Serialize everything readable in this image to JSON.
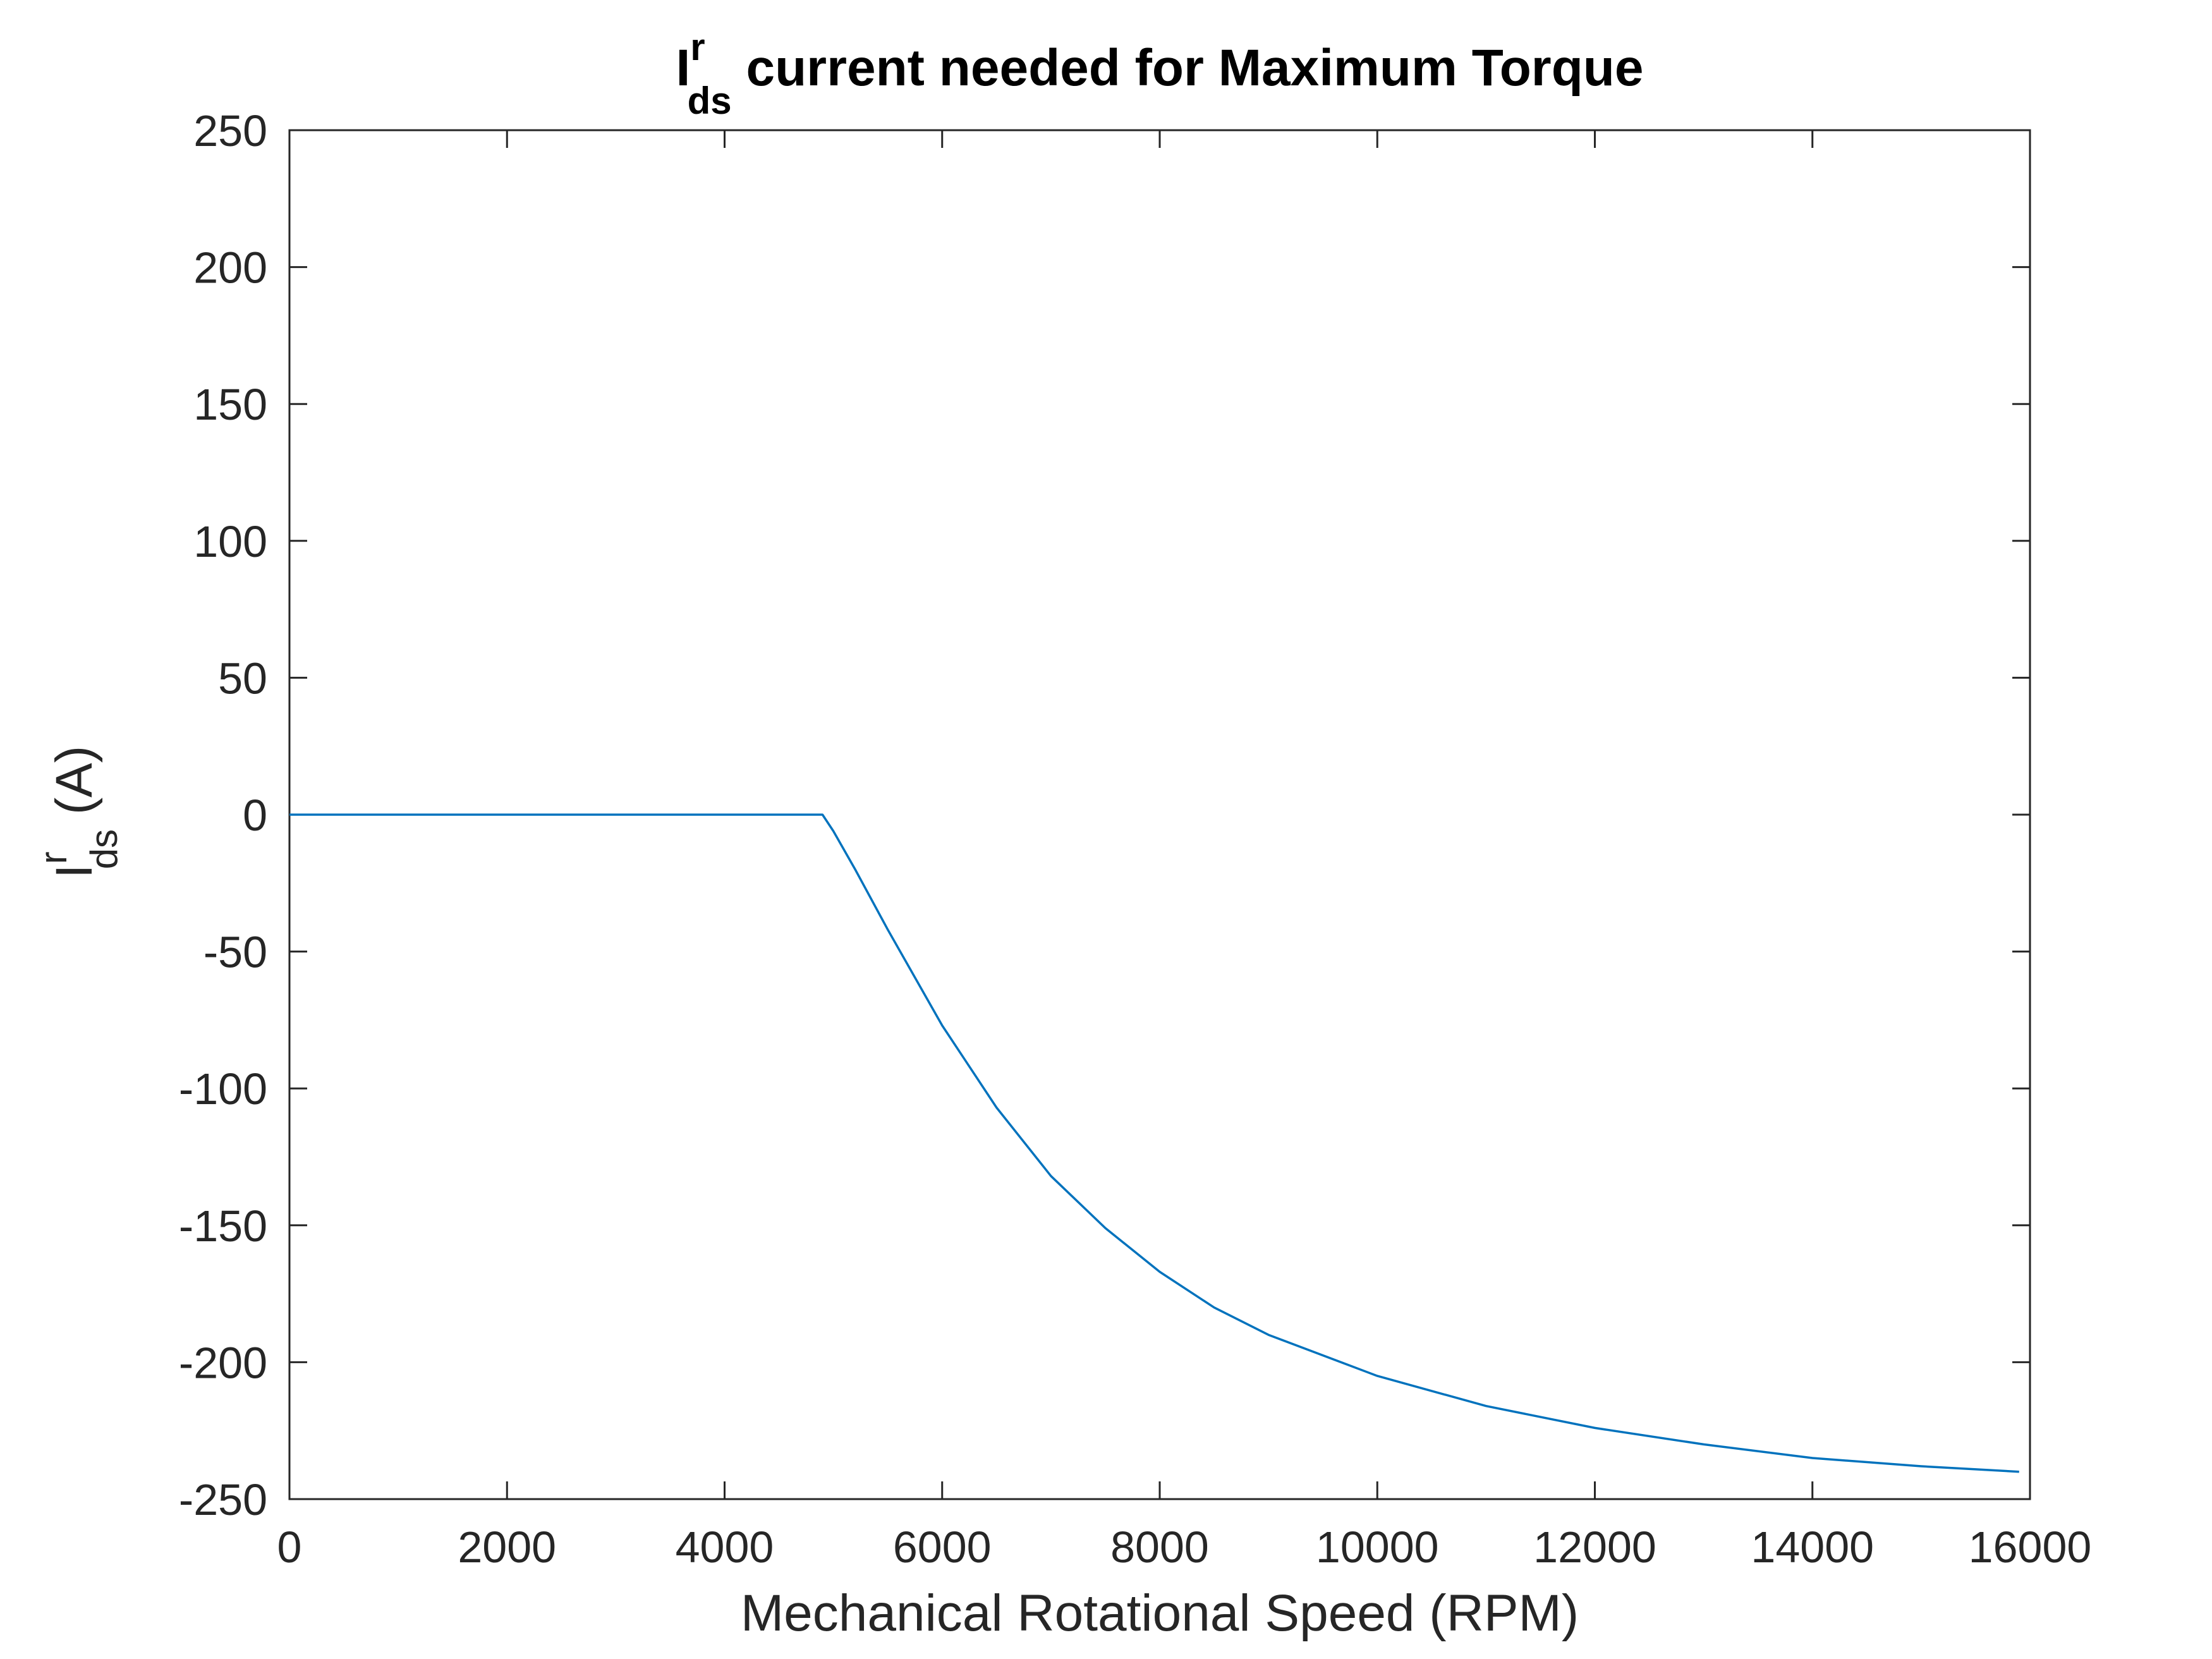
{
  "chart_data": {
    "type": "line",
    "title": {
      "main": "I",
      "sup": "r",
      "sub": "ds",
      "rest": " current needed for Maximum Torque"
    },
    "xlabel": "Mechanical Rotational Speed (RPM)",
    "ylabel": {
      "main": "I",
      "sup": "r",
      "sub": "ds",
      "rest": " (A)"
    },
    "xlim": [
      0,
      16000
    ],
    "ylim": [
      -250,
      250
    ],
    "x_ticks": [
      0,
      2000,
      4000,
      6000,
      8000,
      10000,
      12000,
      14000,
      16000
    ],
    "y_ticks": [
      250,
      200,
      150,
      100,
      50,
      0,
      -50,
      -100,
      -150,
      -200,
      -250
    ],
    "x_tick_labels": [
      "0",
      "2000",
      "4000",
      "6000",
      "8000",
      "10000",
      "12000",
      "14000",
      "16000"
    ],
    "y_tick_labels": [
      "250",
      "200",
      "150",
      "100",
      "50",
      "0",
      "-50",
      "-100",
      "-150",
      "-200",
      "-250"
    ],
    "grid": false,
    "color": "#0072BD",
    "series": [
      {
        "x": [
          0,
          4900,
          5000,
          5200,
          5500,
          6000,
          6500,
          7000,
          7500,
          8000,
          8500,
          9000,
          10000,
          11000,
          12000,
          13000,
          14000,
          15000,
          15900
        ],
        "y": [
          0,
          0,
          -6,
          -20,
          -42,
          -77,
          -107,
          -132,
          -151,
          -167,
          -180,
          -190,
          -205,
          -216,
          -224,
          -230,
          -235,
          -238,
          -240
        ]
      }
    ]
  }
}
